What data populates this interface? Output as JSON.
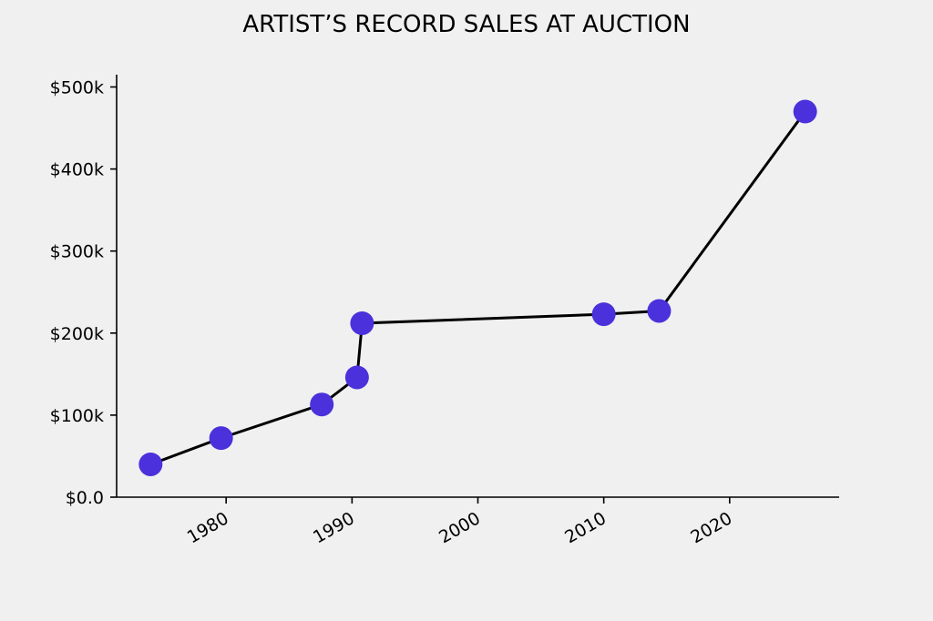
{
  "chart_data": {
    "type": "line",
    "title": "ARTIST’S RECORD SALES AT AUCTION",
    "xlabel": "",
    "ylabel": "",
    "x_date_unit": "year",
    "xlim": [
      1971.3,
      2028.7
    ],
    "ylim": [
      0,
      515000
    ],
    "x_ticks": [
      {
        "value": 1980,
        "label": "1980"
      },
      {
        "value": 1990,
        "label": "1990"
      },
      {
        "value": 2000,
        "label": "2000"
      },
      {
        "value": 2010,
        "label": "2010"
      },
      {
        "value": 2020,
        "label": "2020"
      }
    ],
    "y_ticks": [
      {
        "value": 0,
        "label": "$0.0"
      },
      {
        "value": 100000,
        "label": "$100k"
      },
      {
        "value": 200000,
        "label": "$200k"
      },
      {
        "value": 300000,
        "label": "$300k"
      },
      {
        "value": 400000,
        "label": "$400k"
      },
      {
        "value": 500000,
        "label": "$500k"
      }
    ],
    "grid": false,
    "series": [
      {
        "x": [
          1974.0,
          1979.6,
          1987.6,
          1990.4,
          1990.8,
          2010.0,
          2014.4,
          2026.0
        ],
        "values": [
          40000,
          72000,
          113000,
          146000,
          212000,
          223000,
          227000,
          470000
        ]
      }
    ],
    "colors": {
      "line": "#000000",
      "marker": "#4a31db"
    }
  }
}
